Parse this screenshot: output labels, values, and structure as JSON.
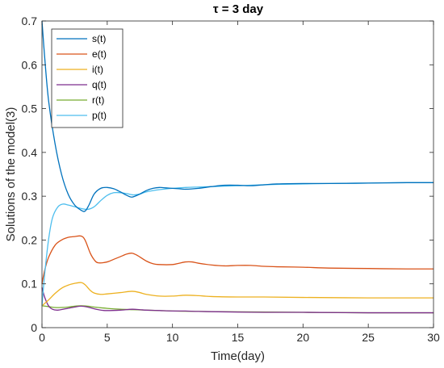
{
  "chart_data": {
    "type": "line",
    "title": "τ = 3 day",
    "xlabel": "Time(day)",
    "ylabel": "Solutions of the model(3)",
    "xlim": [
      0,
      30
    ],
    "ylim": [
      0,
      0.7
    ],
    "xticks": [
      0,
      5,
      10,
      15,
      20,
      25,
      30
    ],
    "yticks": [
      0,
      0.1,
      0.2,
      0.3,
      0.4,
      0.5,
      0.6,
      0.7
    ],
    "grid": false,
    "legend": "top-left",
    "series": [
      {
        "name": "s(t)",
        "color": "#0072BD",
        "points": [
          [
            0,
            0.7
          ],
          [
            0.2,
            0.62
          ],
          [
            0.5,
            0.52
          ],
          [
            1,
            0.42
          ],
          [
            1.5,
            0.35
          ],
          [
            2,
            0.305
          ],
          [
            2.5,
            0.28
          ],
          [
            3,
            0.268
          ],
          [
            3.3,
            0.266
          ],
          [
            3.6,
            0.28
          ],
          [
            4,
            0.305
          ],
          [
            4.5,
            0.318
          ],
          [
            5,
            0.32
          ],
          [
            5.5,
            0.317
          ],
          [
            6,
            0.31
          ],
          [
            6.5,
            0.302
          ],
          [
            6.9,
            0.298
          ],
          [
            7.5,
            0.305
          ],
          [
            8,
            0.313
          ],
          [
            8.5,
            0.318
          ],
          [
            9,
            0.32
          ],
          [
            9.5,
            0.319
          ],
          [
            10,
            0.318
          ],
          [
            10.5,
            0.317
          ],
          [
            11,
            0.316
          ],
          [
            12,
            0.318
          ],
          [
            13,
            0.322
          ],
          [
            14,
            0.325
          ],
          [
            15,
            0.325
          ],
          [
            16,
            0.324
          ],
          [
            17,
            0.326
          ],
          [
            18,
            0.328
          ],
          [
            20,
            0.329
          ],
          [
            22,
            0.329
          ],
          [
            25,
            0.33
          ],
          [
            28,
            0.331
          ],
          [
            30,
            0.331
          ]
        ]
      },
      {
        "name": "e(t)",
        "color": "#D95319",
        "points": [
          [
            0,
            0.1
          ],
          [
            0.2,
            0.13
          ],
          [
            0.5,
            0.16
          ],
          [
            1,
            0.188
          ],
          [
            1.5,
            0.2
          ],
          [
            2,
            0.206
          ],
          [
            2.5,
            0.208
          ],
          [
            3,
            0.209
          ],
          [
            3.3,
            0.2
          ],
          [
            3.7,
            0.17
          ],
          [
            4,
            0.155
          ],
          [
            4.3,
            0.148
          ],
          [
            5,
            0.15
          ],
          [
            5.5,
            0.156
          ],
          [
            6,
            0.162
          ],
          [
            6.5,
            0.168
          ],
          [
            6.9,
            0.17
          ],
          [
            7.3,
            0.165
          ],
          [
            8,
            0.152
          ],
          [
            8.5,
            0.146
          ],
          [
            9,
            0.144
          ],
          [
            10,
            0.144
          ],
          [
            10.5,
            0.147
          ],
          [
            11,
            0.15
          ],
          [
            11.5,
            0.15
          ],
          [
            12,
            0.147
          ],
          [
            13,
            0.143
          ],
          [
            14,
            0.141
          ],
          [
            15,
            0.142
          ],
          [
            16,
            0.142
          ],
          [
            17,
            0.14
          ],
          [
            18,
            0.139
          ],
          [
            20,
            0.138
          ],
          [
            22,
            0.136
          ],
          [
            25,
            0.135
          ],
          [
            28,
            0.134
          ],
          [
            30,
            0.134
          ]
        ]
      },
      {
        "name": "i(t)",
        "color": "#EDB120",
        "points": [
          [
            0,
            0.05
          ],
          [
            0.5,
            0.063
          ],
          [
            1,
            0.078
          ],
          [
            1.5,
            0.09
          ],
          [
            2,
            0.097
          ],
          [
            2.5,
            0.101
          ],
          [
            3,
            0.103
          ],
          [
            3.3,
            0.098
          ],
          [
            3.7,
            0.085
          ],
          [
            4,
            0.079
          ],
          [
            4.5,
            0.076
          ],
          [
            5,
            0.077
          ],
          [
            6,
            0.08
          ],
          [
            6.9,
            0.083
          ],
          [
            7.5,
            0.08
          ],
          [
            8,
            0.076
          ],
          [
            9,
            0.072
          ],
          [
            10,
            0.072
          ],
          [
            11,
            0.074
          ],
          [
            12,
            0.073
          ],
          [
            13,
            0.071
          ],
          [
            15,
            0.07
          ],
          [
            17,
            0.07
          ],
          [
            20,
            0.069
          ],
          [
            25,
            0.068
          ],
          [
            30,
            0.068
          ]
        ]
      },
      {
        "name": "q(t)",
        "color": "#7E2F8E",
        "points": [
          [
            0,
            0.092
          ],
          [
            0.2,
            0.07
          ],
          [
            0.5,
            0.05
          ],
          [
            0.8,
            0.042
          ],
          [
            1.2,
            0.04
          ],
          [
            1.8,
            0.043
          ],
          [
            2.5,
            0.047
          ],
          [
            3,
            0.049
          ],
          [
            3.5,
            0.047
          ],
          [
            4,
            0.043
          ],
          [
            4.5,
            0.04
          ],
          [
            5,
            0.039
          ],
          [
            6,
            0.04
          ],
          [
            6.9,
            0.042
          ],
          [
            7.5,
            0.041
          ],
          [
            8,
            0.04
          ],
          [
            9,
            0.039
          ],
          [
            10,
            0.038
          ],
          [
            11,
            0.038
          ],
          [
            12,
            0.037
          ],
          [
            14,
            0.036
          ],
          [
            17,
            0.035
          ],
          [
            20,
            0.035
          ],
          [
            25,
            0.034
          ],
          [
            30,
            0.034
          ]
        ]
      },
      {
        "name": "r(t)",
        "color": "#77AC30",
        "points": [
          [
            0,
            0.05
          ],
          [
            0.5,
            0.048
          ],
          [
            1,
            0.046
          ],
          [
            1.5,
            0.046
          ],
          [
            2,
            0.047
          ],
          [
            2.5,
            0.049
          ],
          [
            3,
            0.05
          ],
          [
            3.5,
            0.049
          ],
          [
            4,
            0.047
          ],
          [
            5,
            0.044
          ],
          [
            6,
            0.042
          ],
          [
            7,
            0.041
          ],
          [
            8,
            0.04
          ],
          [
            10,
            0.038
          ],
          [
            12,
            0.037
          ],
          [
            15,
            0.036
          ],
          [
            20,
            0.035
          ],
          [
            25,
            0.034
          ],
          [
            30,
            0.034
          ]
        ]
      },
      {
        "name": "p(t)",
        "color": "#4DBEEE",
        "points": [
          [
            0,
            0.05
          ],
          [
            0.2,
            0.12
          ],
          [
            0.5,
            0.2
          ],
          [
            0.8,
            0.25
          ],
          [
            1.2,
            0.275
          ],
          [
            1.6,
            0.282
          ],
          [
            2,
            0.28
          ],
          [
            2.5,
            0.276
          ],
          [
            3,
            0.272
          ],
          [
            3.5,
            0.27
          ],
          [
            4,
            0.276
          ],
          [
            4.5,
            0.29
          ],
          [
            5,
            0.302
          ],
          [
            5.5,
            0.308
          ],
          [
            6,
            0.308
          ],
          [
            6.5,
            0.306
          ],
          [
            7,
            0.303
          ],
          [
            7.5,
            0.305
          ],
          [
            8,
            0.31
          ],
          [
            9,
            0.315
          ],
          [
            10,
            0.318
          ],
          [
            11,
            0.32
          ],
          [
            12,
            0.321
          ],
          [
            13,
            0.322
          ],
          [
            14,
            0.323
          ],
          [
            15,
            0.324
          ],
          [
            16,
            0.325
          ],
          [
            18,
            0.327
          ],
          [
            20,
            0.328
          ],
          [
            22,
            0.329
          ],
          [
            25,
            0.33
          ],
          [
            28,
            0.331
          ],
          [
            30,
            0.331
          ]
        ]
      }
    ]
  }
}
